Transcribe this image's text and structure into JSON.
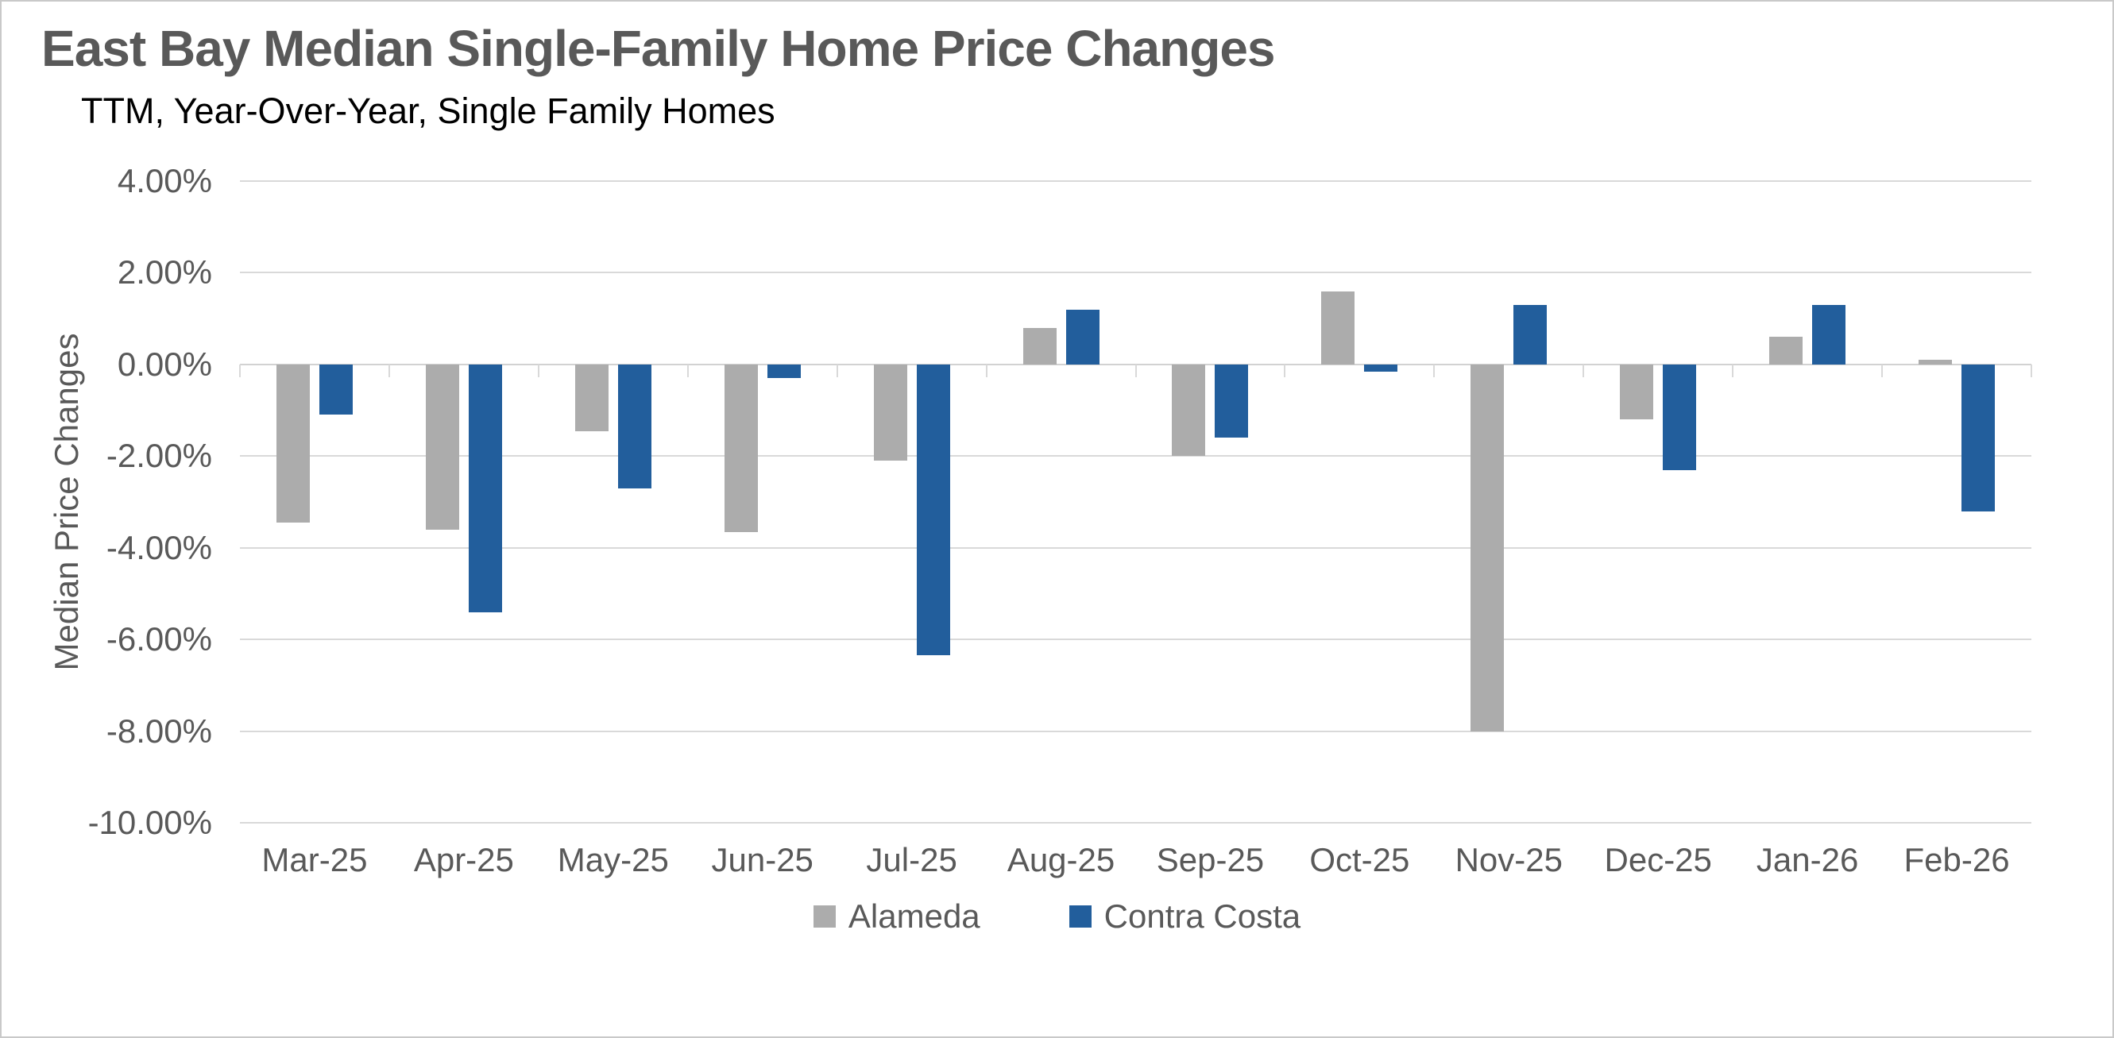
{
  "header": {
    "title": "East Bay Median Single-Family Home Price Changes",
    "subtitle": "TTM, Year-Over-Year, Single Family Homes",
    "title_color": "#595959",
    "subtitle_color": "#000000"
  },
  "chart_data": {
    "type": "bar",
    "title": "East Bay Median Single-Family Home Price Changes",
    "subtitle": "TTM, Year-Over-Year, Single Family Homes",
    "xlabel": "",
    "ylabel": "Median Price Changes",
    "categories": [
      "Mar-25",
      "Apr-25",
      "May-25",
      "Jun-25",
      "Jul-25",
      "Aug-25",
      "Sep-25",
      "Oct-25",
      "Nov-25",
      "Dec-25",
      "Jan-26",
      "Feb-26"
    ],
    "series": [
      {
        "name": "Alameda",
        "color": "#acacac",
        "values": [
          -3.45,
          -3.6,
          -1.45,
          -3.65,
          -2.1,
          0.8,
          -2.0,
          1.6,
          -8.0,
          -1.2,
          0.6,
          0.1
        ]
      },
      {
        "name": "Contra Costa",
        "color": "#225e9c",
        "values": [
          -1.1,
          -5.4,
          -2.7,
          -0.3,
          -6.35,
          1.2,
          -1.6,
          -0.15,
          1.3,
          -2.3,
          1.3,
          -3.2
        ]
      }
    ],
    "ylim": [
      -10,
      4
    ],
    "ytick_step": 2,
    "yticks": {
      "values": [
        4,
        2,
        0,
        -2,
        -4,
        -6,
        -8,
        -10
      ],
      "labels": [
        "4.00%",
        "2.00%",
        "0.00%",
        "-2.00%",
        "-4.00%",
        "-6.00%",
        "-8.00%",
        "-10.00%"
      ]
    },
    "grid": true,
    "legend_position": "bottom",
    "gridline_color": "#d9d9d9",
    "axis_line_color": "#d2d2d2",
    "axis_text_color": "#595959"
  },
  "legend": {
    "items": [
      {
        "label": "Alameda",
        "color": "#acacac"
      },
      {
        "label": "Contra Costa",
        "color": "#225e9c"
      }
    ]
  }
}
